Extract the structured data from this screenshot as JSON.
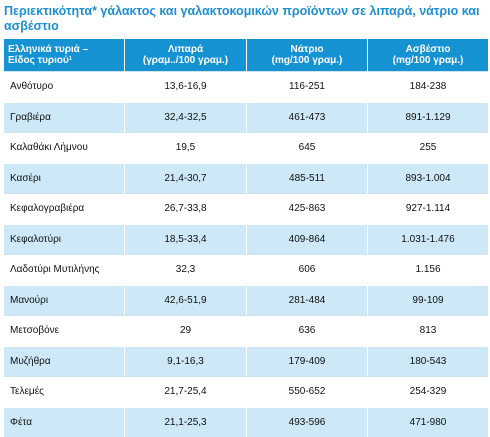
{
  "title": "Περιεκτικότητα* γάλακτος και γαλακτοκομικών προϊόντων σε λιπαρά, νάτριο και ασβέστιο",
  "table": {
    "headers": [
      {
        "line1": "Ελληνικά τυριά –",
        "line2": "Είδος τυριού¹"
      },
      {
        "line1": "Λιπαρά",
        "line2": "(γραμ../100 γραμ.)"
      },
      {
        "line1": "Νάτριο",
        "line2": "(mg/100 γραμ.)"
      },
      {
        "line1": "Ασβέστιο",
        "line2": "(mg/100 γραμ.)"
      }
    ],
    "rows": [
      [
        "Ανθότυρο",
        "13,6-16,9",
        "116-251",
        "184-238"
      ],
      [
        "Γραβιέρα",
        "32,4-32,5",
        "461-473",
        "891-1.129"
      ],
      [
        "Καλαθάκι Λήμνου",
        "19,5",
        "645",
        "255"
      ],
      [
        "Κασέρι",
        "21,4-30,7",
        "485-511",
        "893-1.004"
      ],
      [
        "Κεφαλογραβιέρα",
        "26,7-33,8",
        "425-863",
        "927-1.114"
      ],
      [
        "Κεφαλοτύρι",
        "18,5-33,4",
        "409-864",
        "1.031-1.476"
      ],
      [
        "Λαδοτύρι Μυτιλήνης",
        "32,3",
        "606",
        "1.156"
      ],
      [
        "Μανούρι",
        "42,6-51,9",
        "281-484",
        "99-109"
      ],
      [
        "Μετσοβόνε",
        "29",
        "636",
        "813"
      ],
      [
        "Μυζήθρα",
        "9,1-16,3",
        "179-409",
        "180-543"
      ],
      [
        "Τελεμές",
        "21,7-25,4",
        "550-652",
        "254-329"
      ],
      [
        "Φέτα",
        "21,1-25,3",
        "493-596",
        "471-980"
      ]
    ]
  }
}
